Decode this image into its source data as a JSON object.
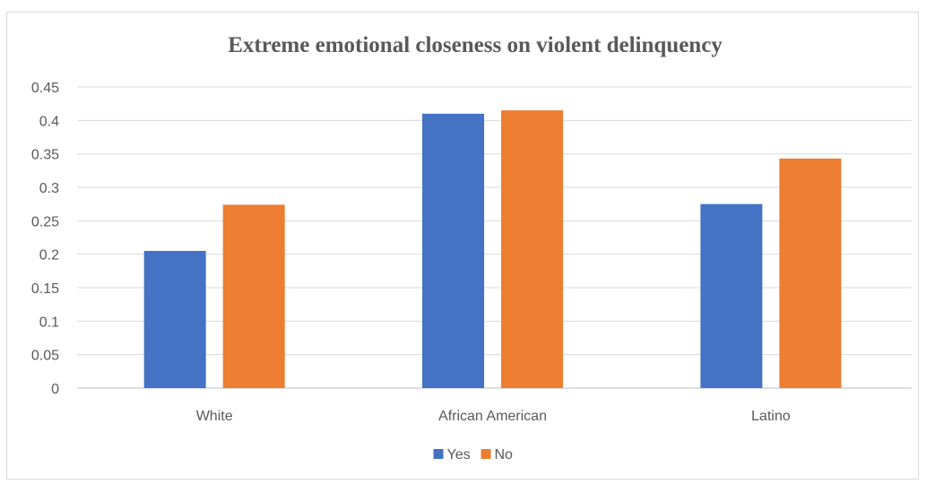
{
  "chart_data": {
    "type": "bar",
    "title": "Extreme emotional closeness on violent delinquency",
    "xlabel": "",
    "ylabel": "",
    "categories": [
      "White",
      "African American",
      "Latino"
    ],
    "series": [
      {
        "name": "Yes",
        "color": "#4472c4",
        "values": [
          0.205,
          0.41,
          0.275
        ]
      },
      {
        "name": "No",
        "color": "#ed7d31",
        "values": [
          0.274,
          0.415,
          0.343
        ]
      }
    ],
    "ylim": [
      0,
      0.45
    ],
    "yticks": [
      "0",
      "0.05",
      "0.1",
      "0.15",
      "0.2",
      "0.25",
      "0.3",
      "0.35",
      "0.4",
      "0.45"
    ],
    "grid": true,
    "legend_position": "bottom"
  }
}
